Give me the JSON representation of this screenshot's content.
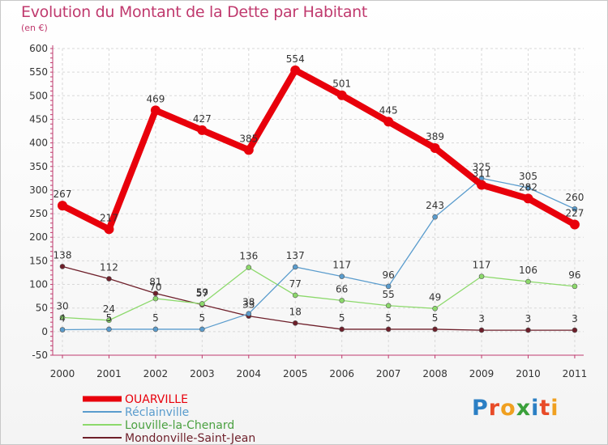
{
  "title": "Evolution du Montant de la Dette par Habitant",
  "subtitle": "(en €)",
  "brand": "Proxiti",
  "chart_data": {
    "type": "line",
    "x": [
      "2000",
      "2001",
      "2002",
      "2003",
      "2004",
      "2005",
      "2006",
      "2007",
      "2008",
      "2009",
      "2010",
      "2011"
    ],
    "ylim": [
      -50,
      600
    ],
    "yticks": [
      -50,
      0,
      50,
      100,
      150,
      200,
      250,
      300,
      350,
      400,
      450,
      500,
      550,
      600
    ],
    "grid": true,
    "legend_position": "bottom-left",
    "series": [
      {
        "name": "OUARVILLE",
        "color": "#e8000b",
        "values": [
          267,
          217,
          469,
          427,
          385,
          554,
          501,
          445,
          389,
          311,
          282,
          227
        ],
        "labels": [
          "267",
          "217",
          "469",
          "427",
          "385",
          "554",
          "501",
          "445",
          "389",
          "311",
          "282",
          "227"
        ]
      },
      {
        "name": "Réclainville",
        "color": "#5a9ccd",
        "values": [
          4,
          5,
          5,
          5,
          38,
          137,
          117,
          96,
          243,
          325,
          305,
          260
        ],
        "labels": [
          "4",
          "5",
          "5",
          "5",
          "38",
          "137",
          "117",
          "96",
          "243",
          "325",
          "305",
          "260"
        ]
      },
      {
        "name": "Louville-la-Chenard",
        "color": "#8cd96b",
        "values": [
          30,
          24,
          70,
          59,
          136,
          77,
          66,
          55,
          49,
          117,
          106,
          96
        ],
        "labels": [
          "30",
          "24",
          "70",
          "59",
          "136",
          "77",
          "66",
          "55",
          "49",
          "117",
          "106",
          "96"
        ]
      },
      {
        "name": "Mondonville-Saint-Jean",
        "color": "#6e1f2a",
        "values": [
          138,
          112,
          81,
          57,
          33,
          18,
          5,
          5,
          5,
          3,
          3,
          3
        ],
        "labels": [
          "138",
          "112",
          "81",
          "57",
          "33",
          "18",
          "5",
          "5",
          "5",
          "3",
          "3",
          "3"
        ]
      }
    ]
  }
}
